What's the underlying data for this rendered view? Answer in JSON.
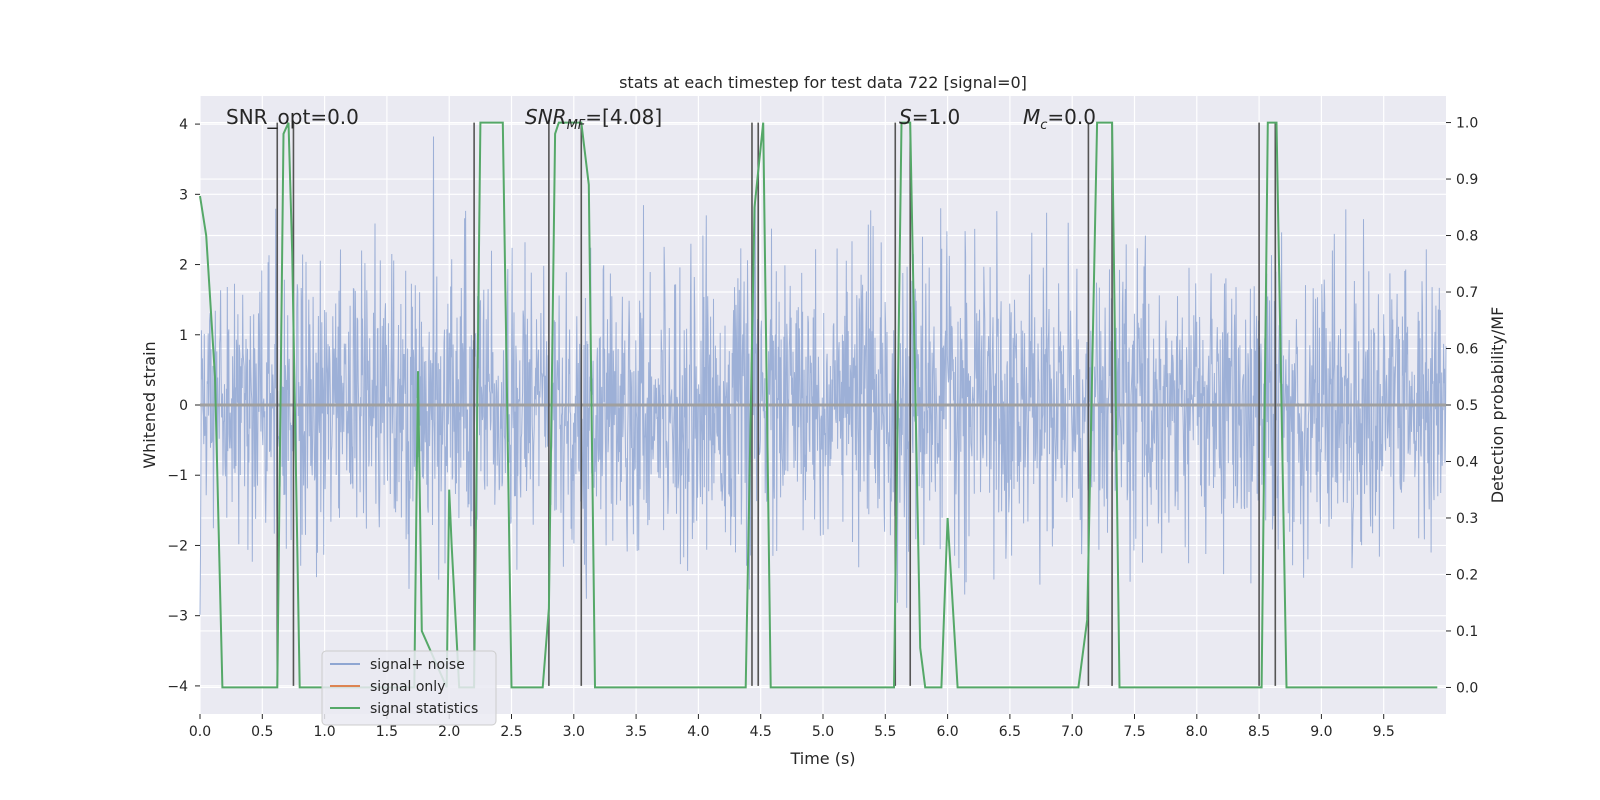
{
  "chart_data": {
    "type": "line",
    "title": "stats at each timestep for test data 722 [signal=0]",
    "xlabel": "Time (s)",
    "ylabel": "Whitened strain",
    "ylabel_right": "Detection probability/MF",
    "xlim": [
      0.0,
      10.0
    ],
    "ylim": [
      -4.4,
      4.4
    ],
    "ylim_right": [
      -0.047,
      1.047
    ],
    "x_ticks": [
      "0.0",
      "0.5",
      "1.0",
      "1.5",
      "2.0",
      "2.5",
      "3.0",
      "3.5",
      "4.0",
      "4.5",
      "5.0",
      "5.5",
      "6.0",
      "6.5",
      "7.0",
      "7.5",
      "8.0",
      "8.5",
      "9.0",
      "9.5"
    ],
    "y_ticks": [
      "4",
      "3",
      "2",
      "1",
      "0",
      "−1",
      "−2",
      "−3",
      "−4"
    ],
    "y_ticks_right": [
      "1.0",
      "0.9",
      "0.8",
      "0.7",
      "0.6",
      "0.5",
      "0.4",
      "0.3",
      "0.2",
      "0.1",
      "0.0"
    ],
    "grid": true,
    "legend_position": "lower-left",
    "annotations": [
      {
        "text": "SNR_opt=0.0",
        "x": 0.19
      },
      {
        "text": "SNR_MF=[4.08]",
        "x": 2.6
      },
      {
        "text": "S=1.0",
        "x": 5.6
      },
      {
        "text": "M_c=0.0",
        "x": 6.6
      }
    ],
    "series": [
      {
        "name": "signal+ noise",
        "color": "#8fa6d2",
        "axis": "left",
        "noise_envelope": {
          "typical_amplitude": 1.6,
          "max_positive": 4.05,
          "min_negative": -3.75
        }
      },
      {
        "name": "signal only",
        "color": "#dd8452",
        "axis": "left",
        "constant_value": 0.0
      },
      {
        "name": "signal statistics",
        "color": "#55a868",
        "axis": "right",
        "x": [
          0.0,
          0.05,
          0.12,
          0.18,
          0.62,
          0.67,
          0.71,
          0.74,
          0.8,
          1.72,
          1.75,
          1.78,
          1.98,
          2.0,
          2.02,
          2.08,
          2.2,
          2.25,
          2.43,
          2.5,
          2.75,
          2.8,
          2.85,
          2.88,
          3.06,
          3.12,
          3.17,
          4.38,
          4.45,
          4.52,
          4.58,
          5.57,
          5.63,
          5.7,
          5.78,
          5.82,
          5.95,
          6.0,
          6.08,
          7.05,
          7.12,
          7.2,
          7.32,
          7.38,
          8.52,
          8.57,
          8.64,
          8.72,
          9.93
        ],
        "y": [
          0.87,
          0.8,
          0.55,
          0.0,
          0.0,
          0.98,
          1.0,
          0.77,
          0.0,
          0.0,
          0.56,
          0.1,
          0.0,
          0.35,
          0.25,
          0.0,
          0.0,
          1.0,
          1.0,
          0.0,
          0.0,
          0.14,
          0.98,
          1.0,
          1.0,
          0.89,
          0.0,
          0.0,
          0.85,
          1.0,
          0.0,
          0.0,
          1.0,
          1.0,
          0.07,
          0.0,
          0.0,
          0.3,
          0.0,
          0.0,
          0.12,
          1.0,
          1.0,
          0.0,
          0.0,
          1.0,
          1.0,
          0.0,
          0.0
        ]
      }
    ],
    "vertical_lines": {
      "color": "#555555",
      "y_top": 4.02,
      "y_bottom": -4.0,
      "x": [
        0.62,
        0.75,
        2.2,
        2.8,
        3.06,
        4.43,
        4.48,
        5.58,
        5.7,
        7.13,
        7.32,
        8.5,
        8.63
      ]
    }
  }
}
